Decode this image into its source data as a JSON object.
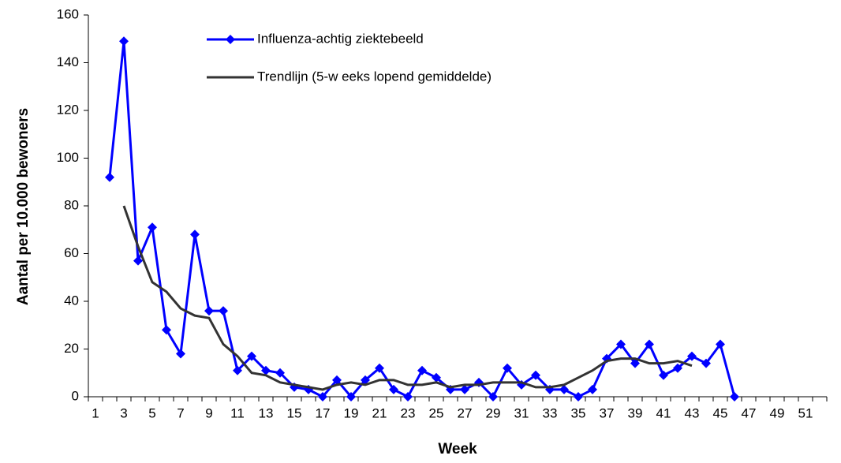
{
  "chart_data": {
    "type": "line",
    "y_label": "Aantal per 10.000 bewoners",
    "x_label": "Week",
    "categories": [
      1,
      null,
      3,
      null,
      5,
      null,
      7,
      null,
      9,
      null,
      11,
      null,
      13,
      null,
      15,
      null,
      17,
      null,
      19,
      null,
      21,
      null,
      23,
      null,
      25,
      null,
      27,
      null,
      29,
      null,
      31,
      null,
      33,
      null,
      35,
      null,
      37,
      null,
      39,
      null,
      41,
      null,
      43,
      null,
      45,
      null,
      47,
      null,
      49,
      null,
      51,
      null
    ],
    "series": [
      {
        "name": "Influenza-achtig ziektebeeld",
        "color": "#0000ff",
        "marker": "diamond",
        "values": [
          null,
          92,
          149,
          57,
          71,
          28,
          18,
          68,
          36,
          36,
          11,
          17,
          11,
          10,
          4,
          3,
          0,
          7,
          0,
          7,
          12,
          3,
          0,
          11,
          8,
          3,
          3,
          6,
          0,
          12,
          5,
          9,
          3,
          3,
          0,
          3,
          16,
          22,
          14,
          22,
          9,
          12,
          17,
          14,
          22,
          0,
          null,
          null,
          null,
          null,
          null,
          null
        ]
      },
      {
        "name": "Trendlijn (5-w eeks lopend gemiddelde)",
        "color": "#333333",
        "marker": "none",
        "values": [
          null,
          null,
          80,
          63,
          48,
          44,
          37,
          34,
          33,
          22,
          17,
          10,
          9,
          6,
          5,
          4,
          3,
          5,
          6,
          5,
          7,
          7,
          5,
          5,
          6,
          4,
          5,
          5,
          6,
          6,
          6,
          4,
          4,
          5,
          8,
          11,
          15,
          16,
          16,
          14,
          14,
          15,
          13,
          null,
          null,
          null,
          null,
          null,
          null,
          null,
          null,
          null
        ]
      }
    ],
    "ylim": [
      0,
      160
    ],
    "yticks": [
      0,
      20,
      40,
      60,
      80,
      100,
      120,
      140,
      160
    ],
    "legend": "top"
  }
}
